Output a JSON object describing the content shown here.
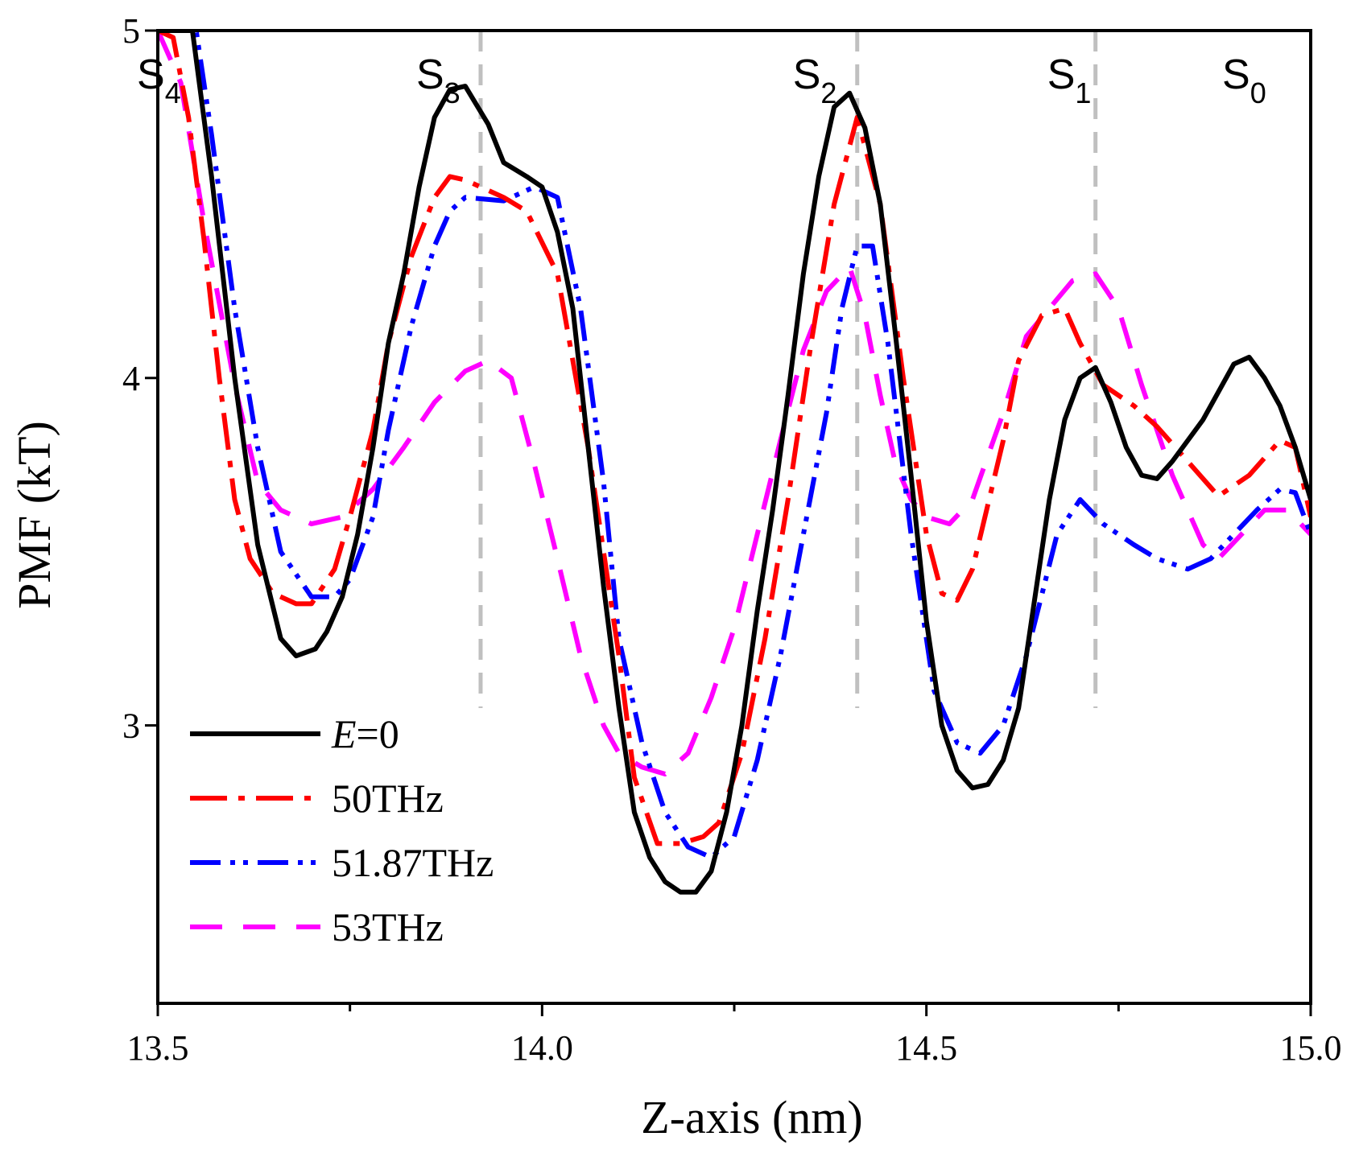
{
  "chart_data": {
    "type": "line",
    "title": "",
    "xlabel": "Z-axis (nm)",
    "ylabel": "PMF (kT)",
    "xlim": [
      13.5,
      15.0
    ],
    "ylim": [
      2.2,
      5.0
    ],
    "xticks": [
      13.5,
      14.0,
      14.5,
      15.0
    ],
    "xtick_labels": [
      "13.5",
      "14.0",
      "14.5",
      "15.0"
    ],
    "xminor_ticks": [
      13.75,
      14.25,
      14.75
    ],
    "yticks": [
      3,
      4,
      5
    ],
    "ytick_labels": [
      "3",
      "4",
      "5"
    ],
    "legend_position": "bottom-left",
    "sites": [
      {
        "main": "S",
        "sub": "4",
        "x": 13.5
      },
      {
        "main": "S",
        "sub": "3",
        "x": 13.92
      },
      {
        "main": "S",
        "sub": "2",
        "x": 14.41
      },
      {
        "main": "S",
        "sub": "1",
        "x": 14.72
      },
      {
        "main": "S",
        "sub": "0",
        "x": 15.0
      }
    ],
    "guide_lines_x": [
      13.92,
      14.41,
      14.72
    ],
    "guide_color": "#c0c0c0",
    "series": [
      {
        "name": "E=0",
        "name_italic": "E",
        "name_rest": "=0",
        "color": "#000000",
        "dash": "solid",
        "x": [
          13.5,
          13.545,
          13.57,
          13.6,
          13.63,
          13.66,
          13.68,
          13.705,
          13.72,
          13.74,
          13.76,
          13.78,
          13.8,
          13.82,
          13.84,
          13.86,
          13.88,
          13.9,
          13.93,
          13.95,
          13.98,
          14.0,
          14.02,
          14.04,
          14.06,
          14.08,
          14.1,
          14.12,
          14.14,
          14.16,
          14.18,
          14.2,
          14.22,
          14.24,
          14.26,
          14.28,
          14.3,
          14.32,
          14.34,
          14.36,
          14.38,
          14.4,
          14.42,
          14.44,
          14.46,
          14.48,
          14.5,
          14.52,
          14.54,
          14.56,
          14.58,
          14.6,
          14.62,
          14.64,
          14.66,
          14.68,
          14.7,
          14.72,
          14.74,
          14.76,
          14.78,
          14.8,
          14.82,
          14.84,
          14.86,
          14.88,
          14.9,
          14.92,
          14.94,
          14.96,
          14.98,
          15.0
        ],
        "y": [
          5.0,
          5.0,
          4.58,
          4.0,
          3.52,
          3.25,
          3.2,
          3.22,
          3.27,
          3.37,
          3.55,
          3.8,
          4.1,
          4.3,
          4.55,
          4.75,
          4.83,
          4.84,
          4.73,
          4.62,
          4.58,
          4.55,
          4.42,
          4.2,
          3.8,
          3.4,
          3.05,
          2.75,
          2.62,
          2.55,
          2.52,
          2.52,
          2.58,
          2.75,
          3.0,
          3.33,
          3.62,
          3.95,
          4.3,
          4.58,
          4.78,
          4.82,
          4.72,
          4.5,
          4.12,
          3.72,
          3.3,
          3.0,
          2.87,
          2.82,
          2.83,
          2.9,
          3.05,
          3.35,
          3.65,
          3.88,
          4.0,
          4.03,
          3.93,
          3.8,
          3.72,
          3.71,
          3.76,
          3.82,
          3.88,
          3.96,
          4.04,
          4.06,
          4.0,
          3.92,
          3.8,
          3.65
        ]
      },
      {
        "name": "50THz",
        "color": "#ff0000",
        "dash": "dashdot",
        "x": [
          13.5,
          13.52,
          13.54,
          13.56,
          13.58,
          13.6,
          13.62,
          13.65,
          13.68,
          13.7,
          13.73,
          13.75,
          13.78,
          13.8,
          13.83,
          13.86,
          13.88,
          13.9,
          13.95,
          13.98,
          14.02,
          14.06,
          14.1,
          14.12,
          14.15,
          14.18,
          14.21,
          14.23,
          14.26,
          14.29,
          14.32,
          14.35,
          14.38,
          14.41,
          14.44,
          14.47,
          14.5,
          14.52,
          14.54,
          14.56,
          14.6,
          14.62,
          14.65,
          14.68,
          14.7,
          14.73,
          14.77,
          14.8,
          14.84,
          14.88,
          14.92,
          14.96,
          14.98,
          15.0
        ],
        "y": [
          5.0,
          4.98,
          4.75,
          4.4,
          4.0,
          3.65,
          3.48,
          3.38,
          3.35,
          3.35,
          3.45,
          3.6,
          3.85,
          4.1,
          4.35,
          4.52,
          4.58,
          4.57,
          4.52,
          4.48,
          4.3,
          3.8,
          3.2,
          2.85,
          2.66,
          2.66,
          2.68,
          2.72,
          2.92,
          3.25,
          3.65,
          4.1,
          4.5,
          4.75,
          4.5,
          4.0,
          3.55,
          3.38,
          3.36,
          3.45,
          3.82,
          4.05,
          4.18,
          4.2,
          4.1,
          3.98,
          3.92,
          3.86,
          3.76,
          3.66,
          3.72,
          3.82,
          3.8,
          3.6
        ]
      },
      {
        "name": "51.87THz",
        "color": "#0000ff",
        "dash": "dashdotdot",
        "x": [
          13.5,
          13.55,
          13.57,
          13.6,
          13.63,
          13.66,
          13.7,
          13.73,
          13.75,
          13.78,
          13.8,
          13.83,
          13.86,
          13.88,
          13.9,
          13.95,
          13.99,
          14.02,
          14.05,
          14.08,
          14.1,
          14.13,
          14.16,
          14.19,
          14.22,
          14.25,
          14.28,
          14.31,
          14.34,
          14.37,
          14.39,
          14.41,
          14.43,
          14.45,
          14.48,
          14.51,
          14.54,
          14.57,
          14.6,
          14.63,
          14.67,
          14.7,
          14.73,
          14.77,
          14.8,
          14.84,
          14.87,
          14.9,
          14.93,
          14.96,
          14.98,
          15.0
        ],
        "y": [
          5.0,
          5.0,
          4.7,
          4.2,
          3.8,
          3.5,
          3.37,
          3.37,
          3.42,
          3.6,
          3.85,
          4.15,
          4.38,
          4.48,
          4.52,
          4.51,
          4.55,
          4.52,
          4.2,
          3.7,
          3.25,
          2.95,
          2.75,
          2.65,
          2.62,
          2.68,
          2.9,
          3.2,
          3.55,
          3.9,
          4.2,
          4.38,
          4.38,
          4.1,
          3.55,
          3.1,
          2.95,
          2.92,
          3.0,
          3.2,
          3.55,
          3.65,
          3.58,
          3.52,
          3.48,
          3.45,
          3.48,
          3.55,
          3.62,
          3.68,
          3.67,
          3.55
        ]
      },
      {
        "name": "53THz",
        "color": "#ff00ff",
        "dash": "dash",
        "x": [
          13.5,
          13.53,
          13.56,
          13.6,
          13.63,
          13.66,
          13.7,
          13.74,
          13.78,
          13.82,
          13.86,
          13.9,
          13.93,
          13.96,
          13.99,
          14.02,
          14.05,
          14.08,
          14.1,
          14.13,
          14.16,
          14.19,
          14.22,
          14.25,
          14.28,
          14.31,
          14.34,
          14.37,
          14.4,
          14.42,
          14.44,
          14.46,
          14.48,
          14.5,
          14.53,
          14.56,
          14.6,
          14.63,
          14.66,
          14.69,
          14.72,
          14.75,
          14.78,
          14.82,
          14.86,
          14.88,
          14.91,
          14.94,
          14.97,
          15.0
        ],
        "y": [
          5.0,
          4.85,
          4.45,
          3.98,
          3.7,
          3.62,
          3.58,
          3.6,
          3.68,
          3.8,
          3.93,
          4.02,
          4.05,
          4.0,
          3.75,
          3.48,
          3.2,
          3.0,
          2.92,
          2.88,
          2.86,
          2.92,
          3.08,
          3.28,
          3.55,
          3.82,
          4.08,
          4.25,
          4.32,
          4.18,
          3.95,
          3.75,
          3.65,
          3.6,
          3.58,
          3.65,
          3.9,
          4.12,
          4.2,
          4.28,
          4.3,
          4.2,
          3.98,
          3.72,
          3.52,
          3.48,
          3.55,
          3.62,
          3.62,
          3.55
        ]
      }
    ]
  }
}
